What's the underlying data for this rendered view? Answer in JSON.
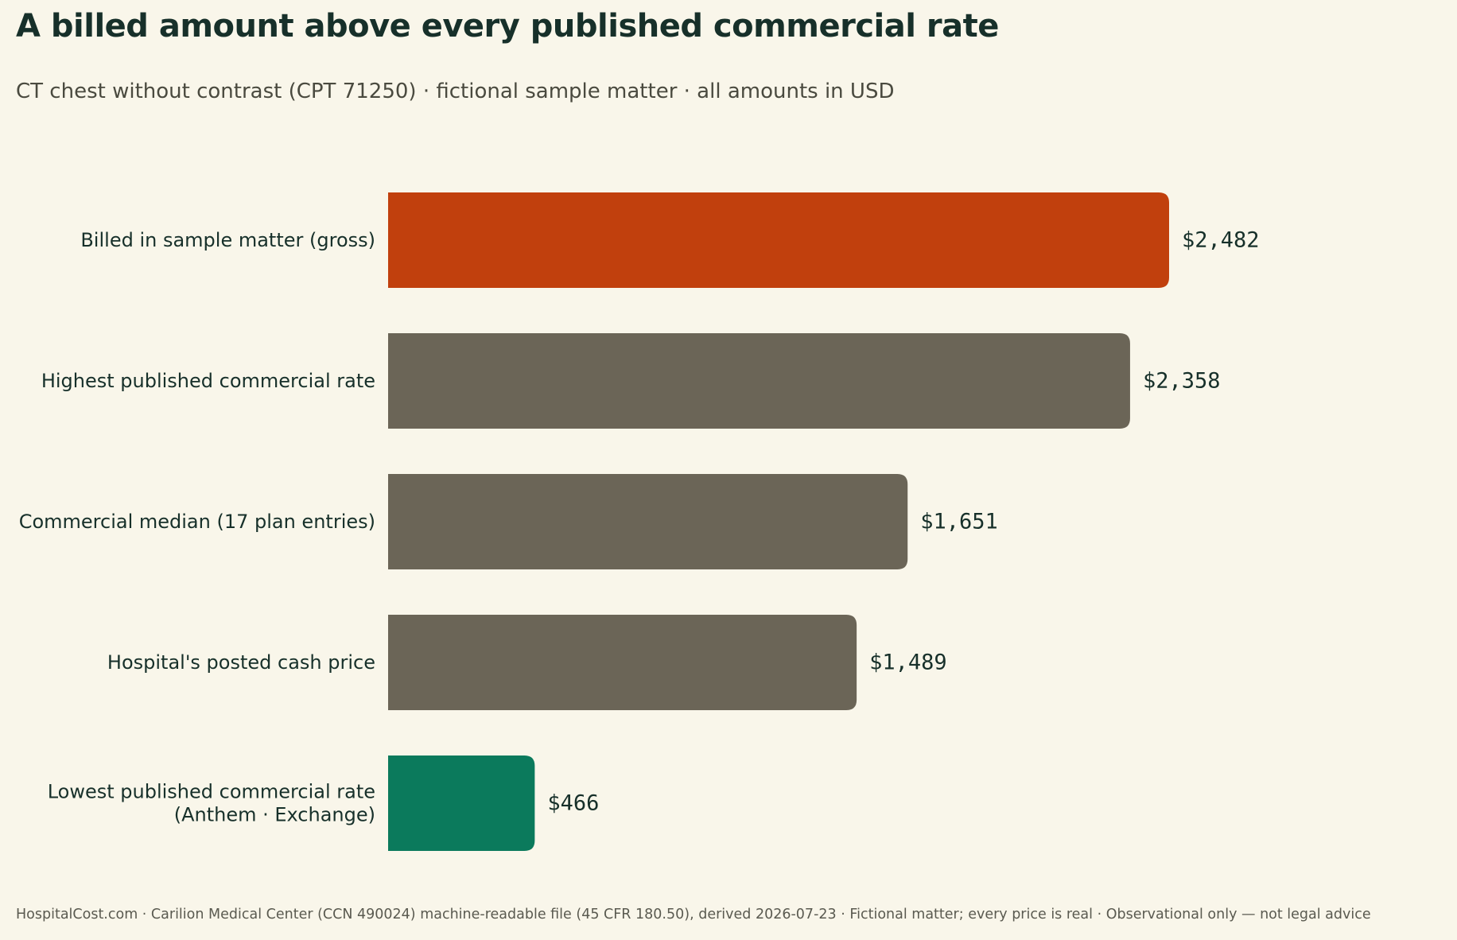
{
  "title": "A billed amount above every published commercial rate",
  "subtitle": "CT chest without contrast (CPT 71250) · fictional sample matter · all amounts in USD",
  "footer": "HospitalCost.com · Carilion Medical Center (CCN 490024) machine-readable file (45 CFR 180.50), derived 2026-07-23 · Fictional matter; every price is real · Observational only — not legal advice",
  "colors": {
    "background": "#f9f6ea",
    "billed": "#c1400d",
    "neutral": "#6b6557",
    "lowest": "#0b7a5c",
    "text": "#17302a"
  },
  "chart_data": {
    "type": "bar",
    "orientation": "horizontal",
    "title": "A billed amount above every published commercial rate",
    "subtitle": "CT chest without contrast (CPT 71250) · fictional sample matter · all amounts in USD",
    "categories": [
      [
        "Billed in sample matter (gross)"
      ],
      [
        "Highest published commercial rate"
      ],
      [
        "Commercial median (17 plan entries)"
      ],
      [
        "Hospital's posted cash price"
      ],
      [
        "Lowest published commercial rate",
        "(Anthem · Exchange)"
      ]
    ],
    "values": [
      2482,
      2358,
      1651,
      1489,
      466
    ],
    "value_labels": [
      "$2,482",
      "$2,358",
      "$1,651",
      "$1,489",
      "$466"
    ],
    "bar_colors": [
      "#c1400d",
      "#6b6557",
      "#6b6557",
      "#6b6557",
      "#0b7a5c"
    ],
    "xlim": [
      0,
      2482
    ],
    "grid": false,
    "legend": "none"
  }
}
